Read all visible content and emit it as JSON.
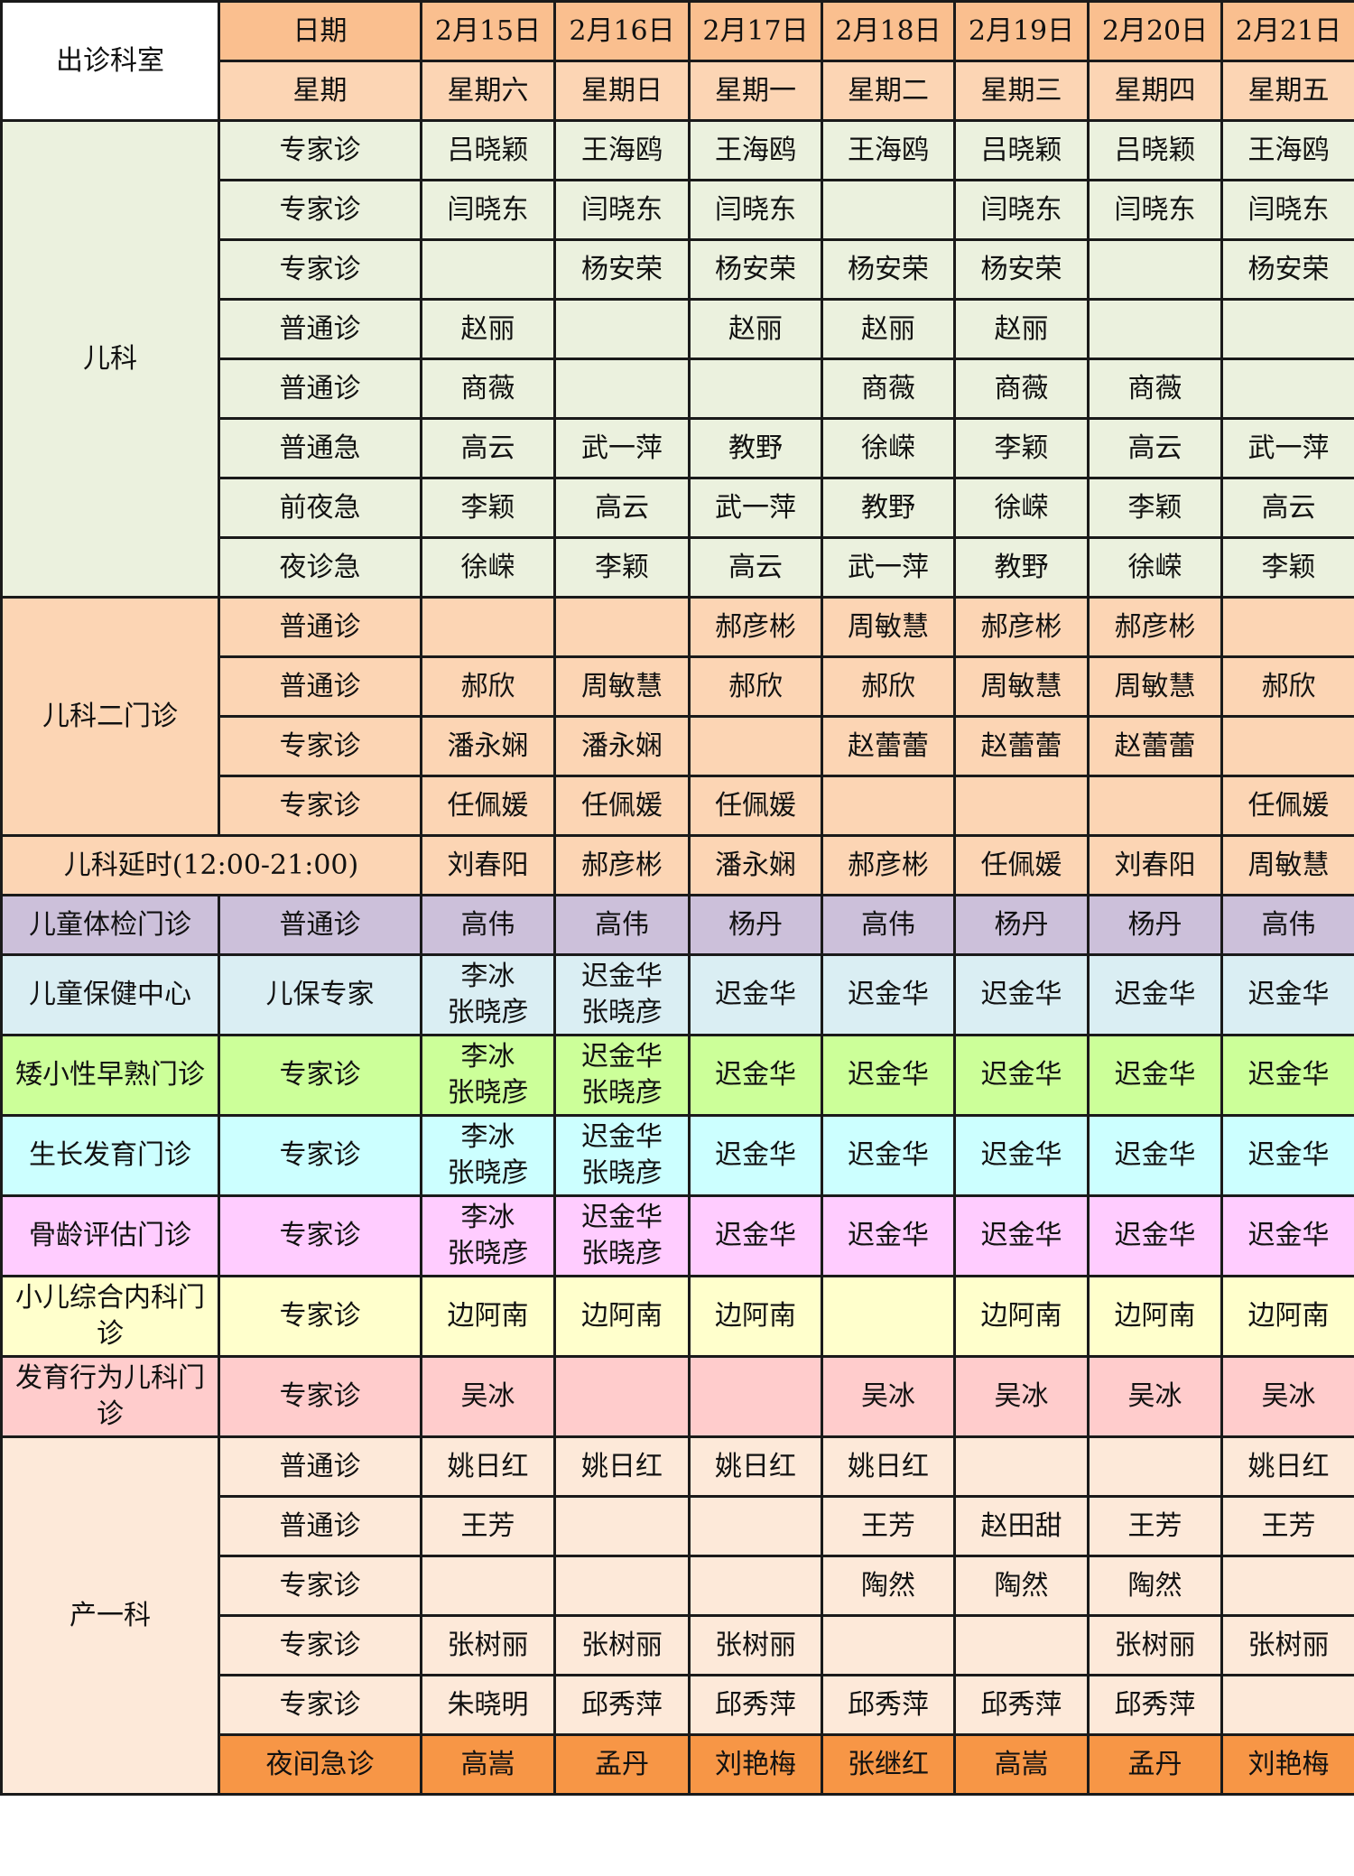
{
  "header": {
    "dept_label": "出诊科室",
    "date_label": "日期",
    "weekday_label": "星期",
    "dates": [
      "2月15日",
      "2月16日",
      "2月17日",
      "2月18日",
      "2月19日",
      "2月20日",
      "2月21日"
    ],
    "weekdays": [
      "星期六",
      "星期日",
      "星期一",
      "星期二",
      "星期三",
      "星期四",
      "星期五"
    ],
    "date_row_color": "#FABF8F",
    "weekday_row_color": "#FCD5B4",
    "dept_header_color": "#FFFFFF"
  },
  "sections": [
    {
      "dept": "儿科",
      "color": "#EBF1DE",
      "rows": [
        {
          "type": "专家诊",
          "cells": [
            "吕晓颖",
            "王海鸥",
            "王海鸥",
            "王海鸥",
            "吕晓颖",
            "吕晓颖",
            "王海鸥"
          ]
        },
        {
          "type": "专家诊",
          "cells": [
            "闫晓东",
            "闫晓东",
            "闫晓东",
            "",
            "闫晓东",
            "闫晓东",
            "闫晓东"
          ]
        },
        {
          "type": "专家诊",
          "cells": [
            "",
            "杨安荣",
            "杨安荣",
            "杨安荣",
            "杨安荣",
            "",
            "杨安荣"
          ]
        },
        {
          "type": "普通诊",
          "cells": [
            "赵丽",
            "",
            "赵丽",
            "赵丽",
            "赵丽",
            "",
            ""
          ]
        },
        {
          "type": "普通诊",
          "cells": [
            "商薇",
            "",
            "",
            "商薇",
            "商薇",
            "商薇",
            ""
          ]
        },
        {
          "type": "普通急",
          "cells": [
            "高云",
            "武一萍",
            "教野",
            "徐嵘",
            "李颖",
            "高云",
            "武一萍"
          ]
        },
        {
          "type": "前夜急",
          "cells": [
            "李颖",
            "高云",
            "武一萍",
            "教野",
            "徐嵘",
            "李颖",
            "高云"
          ]
        },
        {
          "type": "夜诊急",
          "cells": [
            "徐嵘",
            "李颖",
            "高云",
            "武一萍",
            "教野",
            "徐嵘",
            "李颖"
          ]
        }
      ]
    },
    {
      "dept": "儿科二门诊",
      "color": "#FCD5B4",
      "rows": [
        {
          "type": "普通诊",
          "cells": [
            "",
            "",
            "郝彦彬",
            "周敏慧",
            "郝彦彬",
            "郝彦彬",
            ""
          ]
        },
        {
          "type": "普通诊",
          "cells": [
            "郝欣",
            "周敏慧",
            "郝欣",
            "郝欣",
            "周敏慧",
            "周敏慧",
            "郝欣"
          ]
        },
        {
          "type": "专家诊",
          "cells": [
            "潘永娴",
            "潘永娴",
            "",
            "赵蕾蕾",
            "赵蕾蕾",
            "赵蕾蕾",
            ""
          ]
        },
        {
          "type": "专家诊",
          "cells": [
            "任佩媛",
            "任佩媛",
            "任佩媛",
            "",
            "",
            "",
            "任佩媛"
          ]
        }
      ]
    },
    {
      "dept": "儿科延时(12:00-21:00)",
      "color": "#FCD5B4",
      "merged": true,
      "rows": [
        {
          "type": "",
          "cells": [
            "刘春阳",
            "郝彦彬",
            "潘永娴",
            "郝彦彬",
            "任佩媛",
            "刘春阳",
            "周敏慧"
          ]
        }
      ]
    },
    {
      "dept": "儿童体检门诊",
      "color": "#CCC0DA",
      "rows": [
        {
          "type": "普通诊",
          "cells": [
            "高伟",
            "高伟",
            "杨丹",
            "高伟",
            "杨丹",
            "杨丹",
            "高伟"
          ]
        }
      ]
    },
    {
      "dept": "儿童保健中心",
      "color": "#DAEEF3",
      "tall": true,
      "rows": [
        {
          "type": "儿保专家",
          "cells": [
            "李冰\n张晓彦",
            "迟金华\n张晓彦",
            "迟金华",
            "迟金华",
            "迟金华",
            "迟金华",
            "迟金华"
          ]
        }
      ]
    },
    {
      "dept": "矮小性早熟门诊",
      "color": "#CCFF99",
      "tall": true,
      "rows": [
        {
          "type": "专家诊",
          "cells": [
            "李冰\n张晓彦",
            "迟金华\n张晓彦",
            "迟金华",
            "迟金华",
            "迟金华",
            "迟金华",
            "迟金华"
          ]
        }
      ]
    },
    {
      "dept": "生长发育门诊",
      "color": "#CCFFFF",
      "tall": true,
      "rows": [
        {
          "type": "专家诊",
          "cells": [
            "李冰\n张晓彦",
            "迟金华\n张晓彦",
            "迟金华",
            "迟金华",
            "迟金华",
            "迟金华",
            "迟金华"
          ]
        }
      ]
    },
    {
      "dept": "骨龄评估门诊",
      "color": "#FFCCFF",
      "tall": true,
      "rows": [
        {
          "type": "专家诊",
          "cells": [
            "李冰\n张晓彦",
            "迟金华\n张晓彦",
            "迟金华",
            "迟金华",
            "迟金华",
            "迟金华",
            "迟金华"
          ]
        }
      ]
    },
    {
      "dept": "小儿综合内科门诊",
      "color": "#FFFFCC",
      "tall": true,
      "rows": [
        {
          "type": "专家诊",
          "cells": [
            "边阿南",
            "边阿南",
            "边阿南",
            "",
            "边阿南",
            "边阿南",
            "边阿南"
          ]
        }
      ]
    },
    {
      "dept": "发育行为儿科门诊",
      "color": "#FFCCCC",
      "tall": true,
      "rows": [
        {
          "type": "专家诊",
          "cells": [
            "吴冰",
            "",
            "",
            "吴冰",
            "吴冰",
            "吴冰",
            "吴冰"
          ]
        }
      ]
    },
    {
      "dept": "产一科",
      "color": "#FDE9D9",
      "rows": [
        {
          "type": "普通诊",
          "cells": [
            "姚日红",
            "姚日红",
            "姚日红",
            "姚日红",
            "",
            "",
            "姚日红"
          ]
        },
        {
          "type": "普通诊",
          "cells": [
            "王芳",
            "",
            "",
            "王芳",
            "赵田甜",
            "王芳",
            "王芳"
          ]
        },
        {
          "type": "专家诊",
          "cells": [
            "",
            "",
            "",
            "陶然",
            "陶然",
            "陶然",
            ""
          ]
        },
        {
          "type": "专家诊",
          "cells": [
            "张树丽",
            "张树丽",
            "张树丽",
            "",
            "",
            "张树丽",
            "张树丽"
          ]
        },
        {
          "type": "专家诊",
          "cells": [
            "朱晓明",
            "邱秀萍",
            "邱秀萍",
            "邱秀萍",
            "邱秀萍",
            "邱秀萍",
            ""
          ]
        },
        {
          "type": "夜间急诊",
          "row_color": "#F79646",
          "cells": [
            "高嵩",
            "孟丹",
            "刘艳梅",
            "张继红",
            "高嵩",
            "孟丹",
            "刘艳梅"
          ]
        }
      ]
    }
  ]
}
